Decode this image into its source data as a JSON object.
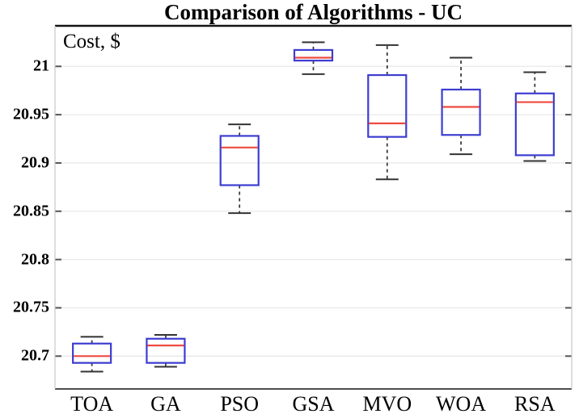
{
  "chart_data": {
    "type": "boxplot",
    "title": "Comparison of Algorithms - UC",
    "ylabel": "Cost, $",
    "xlabel": "",
    "categories": [
      "TOA",
      "GA",
      "PSO",
      "GSA",
      "MVO",
      "WOA",
      "RSA"
    ],
    "ytick_values": [
      20.7,
      20.75,
      20.8,
      20.85,
      20.9,
      20.95,
      21
    ],
    "ytick_labels": [
      "20.7",
      "20.75",
      "20.8",
      "20.85",
      "20.9",
      "20.95",
      "21"
    ],
    "ylim": [
      20.666,
      21.042
    ],
    "grid": "horizontal",
    "legend": "none",
    "series": [
      {
        "name": "TOA",
        "whisker_low": 20.684,
        "q1": 20.693,
        "median": 20.7,
        "q3": 20.713,
        "whisker_high": 20.72
      },
      {
        "name": "GA",
        "whisker_low": 20.689,
        "q1": 20.693,
        "median": 20.711,
        "q3": 20.718,
        "whisker_high": 20.722
      },
      {
        "name": "PSO",
        "whisker_low": 20.848,
        "q1": 20.877,
        "median": 20.916,
        "q3": 20.928,
        "whisker_high": 20.94
      },
      {
        "name": "GSA",
        "whisker_low": 20.992,
        "q1": 21.006,
        "median": 21.009,
        "q3": 21.017,
        "whisker_high": 21.025
      },
      {
        "name": "MVO",
        "whisker_low": 20.883,
        "q1": 20.927,
        "median": 20.941,
        "q3": 20.991,
        "whisker_high": 21.022
      },
      {
        "name": "WOA",
        "whisker_low": 20.909,
        "q1": 20.929,
        "median": 20.958,
        "q3": 20.976,
        "whisker_high": 21.009
      },
      {
        "name": "RSA",
        "whisker_low": 20.902,
        "q1": 20.908,
        "median": 20.963,
        "q3": 20.972,
        "whisker_high": 20.994
      }
    ],
    "colors": {
      "box_edge": "#3d3dd1",
      "median": "#ee4a3e",
      "whisker": "#333333",
      "cap": "#333333",
      "grid": "#e9e9e9",
      "axis_top": "#141414",
      "axis_bottom": "#4d4d4d",
      "axis_side": "#c8c8c8",
      "tick": "#555555",
      "text": "#000000"
    }
  }
}
